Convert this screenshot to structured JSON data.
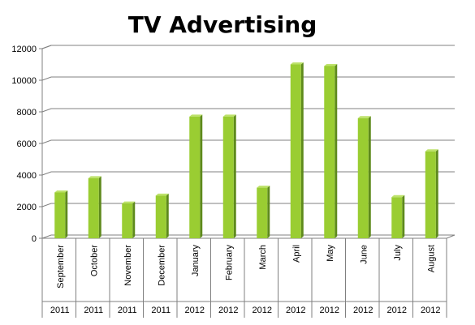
{
  "chart_data": {
    "type": "bar",
    "title": "TV Advertising",
    "xlabel": "",
    "ylabel": "",
    "ylim": [
      0,
      12000
    ],
    "yticks": [
      0,
      2000,
      4000,
      6000,
      8000,
      10000,
      12000
    ],
    "ytick_labels": [
      "0",
      "2000",
      "4000",
      "6000",
      "8000",
      "10000",
      "12000"
    ],
    "grid": true,
    "legend": "none",
    "categories": [
      "September",
      "October",
      "November",
      "December",
      "January",
      "February",
      "March",
      "April",
      "May",
      "June",
      "July",
      "August"
    ],
    "years": [
      "2011",
      "2011",
      "2011",
      "2011",
      "2012",
      "2012",
      "2012",
      "2012",
      "2012",
      "2012",
      "2012",
      "2012"
    ],
    "values": [
      2900,
      3800,
      2200,
      2700,
      7700,
      7700,
      3200,
      11000,
      10900,
      7600,
      2600,
      5500
    ],
    "colors": {
      "bar_front": "#9acd32",
      "bar_side": "#5e8a1c",
      "bar_top": "#bde26a",
      "grid": "#808080",
      "axis": "#808080"
    }
  }
}
